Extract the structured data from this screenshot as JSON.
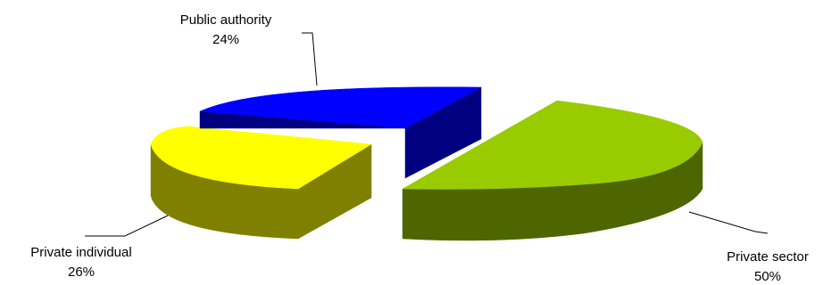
{
  "chart_data": {
    "type": "pie",
    "title": "",
    "style": "3d-exploded",
    "slices": [
      {
        "label": "Public authority",
        "value": 24,
        "pct_label": "24%",
        "color": "#0000ff",
        "side_color": "#000080"
      },
      {
        "label": "Private individual",
        "value": 26,
        "pct_label": "26%",
        "color": "#ffff00",
        "side_color": "#808000"
      },
      {
        "label": "Private sector",
        "value": 50,
        "pct_label": "50%",
        "color": "#99cc00",
        "side_color": "#4d6600"
      }
    ]
  }
}
